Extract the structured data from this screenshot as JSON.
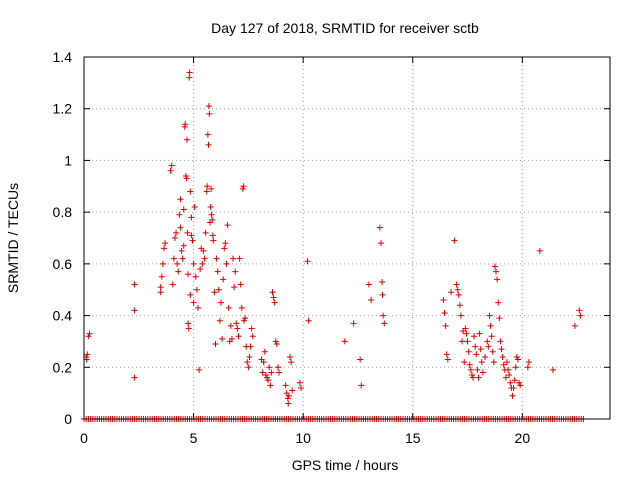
{
  "chart_data": {
    "type": "scatter",
    "title": "Day 127 of 2018, SRMTID for receiver sctb",
    "xlabel": "GPS time / hours",
    "ylabel": "SRMTID / TECUs",
    "xlim": [
      0,
      24
    ],
    "ylim": [
      0,
      1.4
    ],
    "xticks": [
      0,
      5,
      10,
      15,
      20
    ],
    "xtick_labels": [
      "0",
      "5",
      "10",
      "15",
      "20"
    ],
    "yticks": [
      0,
      0.2,
      0.4,
      0.6,
      0.8,
      1.0,
      1.2,
      1.4
    ],
    "ytick_labels": [
      "0",
      "0.2",
      "0.4",
      "0.6",
      "0.8",
      "1",
      "1.2",
      "1.4"
    ],
    "grid": true,
    "marker": "+",
    "color": "#dd0000",
    "series": [
      {
        "name": "SRMTID",
        "zero_baseline_range": [
          0.0,
          22.8
        ],
        "points": [
          [
            0.1,
            0.24
          ],
          [
            0.12,
            0.23
          ],
          [
            0.15,
            0.25
          ],
          [
            0.2,
            0.32
          ],
          [
            0.25,
            0.33
          ],
          [
            2.3,
            0.52
          ],
          [
            2.3,
            0.42
          ],
          [
            2.3,
            0.16
          ],
          [
            3.5,
            0.49
          ],
          [
            3.5,
            0.51
          ],
          [
            3.55,
            0.55
          ],
          [
            3.6,
            0.6
          ],
          [
            3.65,
            0.66
          ],
          [
            3.7,
            0.68
          ],
          [
            3.95,
            0.96
          ],
          [
            4.0,
            0.98
          ],
          [
            4.05,
            0.52
          ],
          [
            4.1,
            0.62
          ],
          [
            4.15,
            0.7
          ],
          [
            4.2,
            0.72
          ],
          [
            4.25,
            0.6
          ],
          [
            4.3,
            0.57
          ],
          [
            4.35,
            0.79
          ],
          [
            4.4,
            0.85
          ],
          [
            4.4,
            0.74
          ],
          [
            4.45,
            0.65
          ],
          [
            4.5,
            0.62
          ],
          [
            4.55,
            0.67
          ],
          [
            4.55,
            0.81
          ],
          [
            4.6,
            1.13
          ],
          [
            4.62,
            1.14
          ],
          [
            4.65,
            0.94
          ],
          [
            4.68,
            0.93
          ],
          [
            4.7,
            1.08
          ],
          [
            4.72,
            0.72
          ],
          [
            4.75,
            0.56
          ],
          [
            4.75,
            0.37
          ],
          [
            4.78,
            0.35
          ],
          [
            4.8,
            1.32
          ],
          [
            4.82,
            1.34
          ],
          [
            4.85,
            0.88
          ],
          [
            4.85,
            0.48
          ],
          [
            4.9,
            0.78
          ],
          [
            4.9,
            0.71
          ],
          [
            4.95,
            0.69
          ],
          [
            5.0,
            0.6
          ],
          [
            5.0,
            0.45
          ],
          [
            5.05,
            0.82
          ],
          [
            5.1,
            0.55
          ],
          [
            5.15,
            0.5
          ],
          [
            5.2,
            0.43
          ],
          [
            5.25,
            0.19
          ],
          [
            5.3,
            0.58
          ],
          [
            5.35,
            0.66
          ],
          [
            5.4,
            0.6
          ],
          [
            5.45,
            0.65
          ],
          [
            5.5,
            0.62
          ],
          [
            5.55,
            0.72
          ],
          [
            5.6,
            0.88
          ],
          [
            5.62,
            0.9
          ],
          [
            5.65,
            1.1
          ],
          [
            5.68,
            1.06
          ],
          [
            5.7,
            1.21
          ],
          [
            5.72,
            1.18
          ],
          [
            5.75,
            0.76
          ],
          [
            5.78,
            0.82
          ],
          [
            5.8,
            0.89
          ],
          [
            5.82,
            0.79
          ],
          [
            5.85,
            0.77
          ],
          [
            5.88,
            0.71
          ],
          [
            5.9,
            0.69
          ],
          [
            5.95,
            0.49
          ],
          [
            6.0,
            0.29
          ],
          [
            6.05,
            0.62
          ],
          [
            6.1,
            0.57
          ],
          [
            6.15,
            0.5
          ],
          [
            6.2,
            0.38
          ],
          [
            6.25,
            0.45
          ],
          [
            6.3,
            0.31
          ],
          [
            6.35,
            0.54
          ],
          [
            6.4,
            0.66
          ],
          [
            6.45,
            0.68
          ],
          [
            6.5,
            0.6
          ],
          [
            6.55,
            0.75
          ],
          [
            6.6,
            0.43
          ],
          [
            6.65,
            0.3
          ],
          [
            6.7,
            0.36
          ],
          [
            6.75,
            0.31
          ],
          [
            6.8,
            0.62
          ],
          [
            6.85,
            0.51
          ],
          [
            6.9,
            0.57
          ],
          [
            6.95,
            0.37
          ],
          [
            7.0,
            0.35
          ],
          [
            7.05,
            0.32
          ],
          [
            7.1,
            0.62
          ],
          [
            7.15,
            0.52
          ],
          [
            7.2,
            0.43
          ],
          [
            7.25,
            0.89
          ],
          [
            7.28,
            0.9
          ],
          [
            7.3,
            0.38
          ],
          [
            7.35,
            0.39
          ],
          [
            7.4,
            0.28
          ],
          [
            7.45,
            0.22
          ],
          [
            7.5,
            0.2
          ],
          [
            7.55,
            0.24
          ],
          [
            7.6,
            0.28
          ],
          [
            7.65,
            0.35
          ],
          [
            7.7,
            0.32
          ],
          [
            8.1,
            0.23
          ],
          [
            8.15,
            0.18
          ],
          [
            8.2,
            0.22
          ],
          [
            8.25,
            0.26
          ],
          [
            8.3,
            0.17
          ],
          [
            8.35,
            0.16
          ],
          [
            8.4,
            0.15
          ],
          [
            8.45,
            0.2
          ],
          [
            8.5,
            0.13
          ],
          [
            8.55,
            0.18
          ],
          [
            8.6,
            0.49
          ],
          [
            8.65,
            0.47
          ],
          [
            8.7,
            0.45
          ],
          [
            8.75,
            0.3
          ],
          [
            8.8,
            0.29
          ],
          [
            8.85,
            0.2
          ],
          [
            8.9,
            0.18
          ],
          [
            9.2,
            0.13
          ],
          [
            9.25,
            0.1
          ],
          [
            9.3,
            0.08
          ],
          [
            9.32,
            0.06
          ],
          [
            9.35,
            0.09
          ],
          [
            9.4,
            0.24
          ],
          [
            9.45,
            0.22
          ],
          [
            9.5,
            0.11
          ],
          [
            9.85,
            0.14
          ],
          [
            9.9,
            0.12
          ],
          [
            10.2,
            0.61
          ],
          [
            10.25,
            0.38
          ],
          [
            11.9,
            0.3
          ],
          [
            12.3,
            0.37
          ],
          [
            12.6,
            0.23
          ],
          [
            12.65,
            0.13
          ],
          [
            13.0,
            0.52
          ],
          [
            13.1,
            0.46
          ],
          [
            13.5,
            0.74
          ],
          [
            13.55,
            0.68
          ],
          [
            13.6,
            0.53
          ],
          [
            13.62,
            0.48
          ],
          [
            13.65,
            0.4
          ],
          [
            13.7,
            0.37
          ],
          [
            16.4,
            0.46
          ],
          [
            16.45,
            0.41
          ],
          [
            16.5,
            0.36
          ],
          [
            16.55,
            0.25
          ],
          [
            16.6,
            0.23
          ],
          [
            16.75,
            0.49
          ],
          [
            16.9,
            0.69
          ],
          [
            17.0,
            0.52
          ],
          [
            17.05,
            0.5
          ],
          [
            17.1,
            0.48
          ],
          [
            17.15,
            0.44
          ],
          [
            17.2,
            0.4
          ],
          [
            17.25,
            0.3
          ],
          [
            17.3,
            0.34
          ],
          [
            17.35,
            0.22
          ],
          [
            17.4,
            0.35
          ],
          [
            17.45,
            0.33
          ],
          [
            17.5,
            0.3
          ],
          [
            17.55,
            0.26
          ],
          [
            17.6,
            0.21
          ],
          [
            17.65,
            0.19
          ],
          [
            17.7,
            0.17
          ],
          [
            17.75,
            0.16
          ],
          [
            17.8,
            0.32
          ],
          [
            17.85,
            0.28
          ],
          [
            17.9,
            0.25
          ],
          [
            17.95,
            0.19
          ],
          [
            18.0,
            0.16
          ],
          [
            18.05,
            0.33
          ],
          [
            18.1,
            0.27
          ],
          [
            18.15,
            0.22
          ],
          [
            18.2,
            0.18
          ],
          [
            18.3,
            0.24
          ],
          [
            18.4,
            0.3
          ],
          [
            18.45,
            0.28
          ],
          [
            18.5,
            0.4
          ],
          [
            18.55,
            0.36
          ],
          [
            18.6,
            0.32
          ],
          [
            18.65,
            0.26
          ],
          [
            18.7,
            0.22
          ],
          [
            18.75,
            0.59
          ],
          [
            18.8,
            0.57
          ],
          [
            18.85,
            0.54
          ],
          [
            18.9,
            0.45
          ],
          [
            18.95,
            0.39
          ],
          [
            19.0,
            0.3
          ],
          [
            19.05,
            0.27
          ],
          [
            19.1,
            0.24
          ],
          [
            19.15,
            0.21
          ],
          [
            19.2,
            0.19
          ],
          [
            19.25,
            0.16
          ],
          [
            19.3,
            0.22
          ],
          [
            19.35,
            0.19
          ],
          [
            19.4,
            0.17
          ],
          [
            19.45,
            0.14
          ],
          [
            19.5,
            0.12
          ],
          [
            19.55,
            0.09
          ],
          [
            19.6,
            0.12
          ],
          [
            19.65,
            0.15
          ],
          [
            19.7,
            0.2
          ],
          [
            19.75,
            0.24
          ],
          [
            19.8,
            0.23
          ],
          [
            19.85,
            0.14
          ],
          [
            19.9,
            0.13
          ],
          [
            20.25,
            0.2
          ],
          [
            20.3,
            0.22
          ],
          [
            20.8,
            0.65
          ],
          [
            21.4,
            0.19
          ],
          [
            22.4,
            0.36
          ],
          [
            22.6,
            0.42
          ],
          [
            22.65,
            0.4
          ]
        ]
      }
    ]
  }
}
